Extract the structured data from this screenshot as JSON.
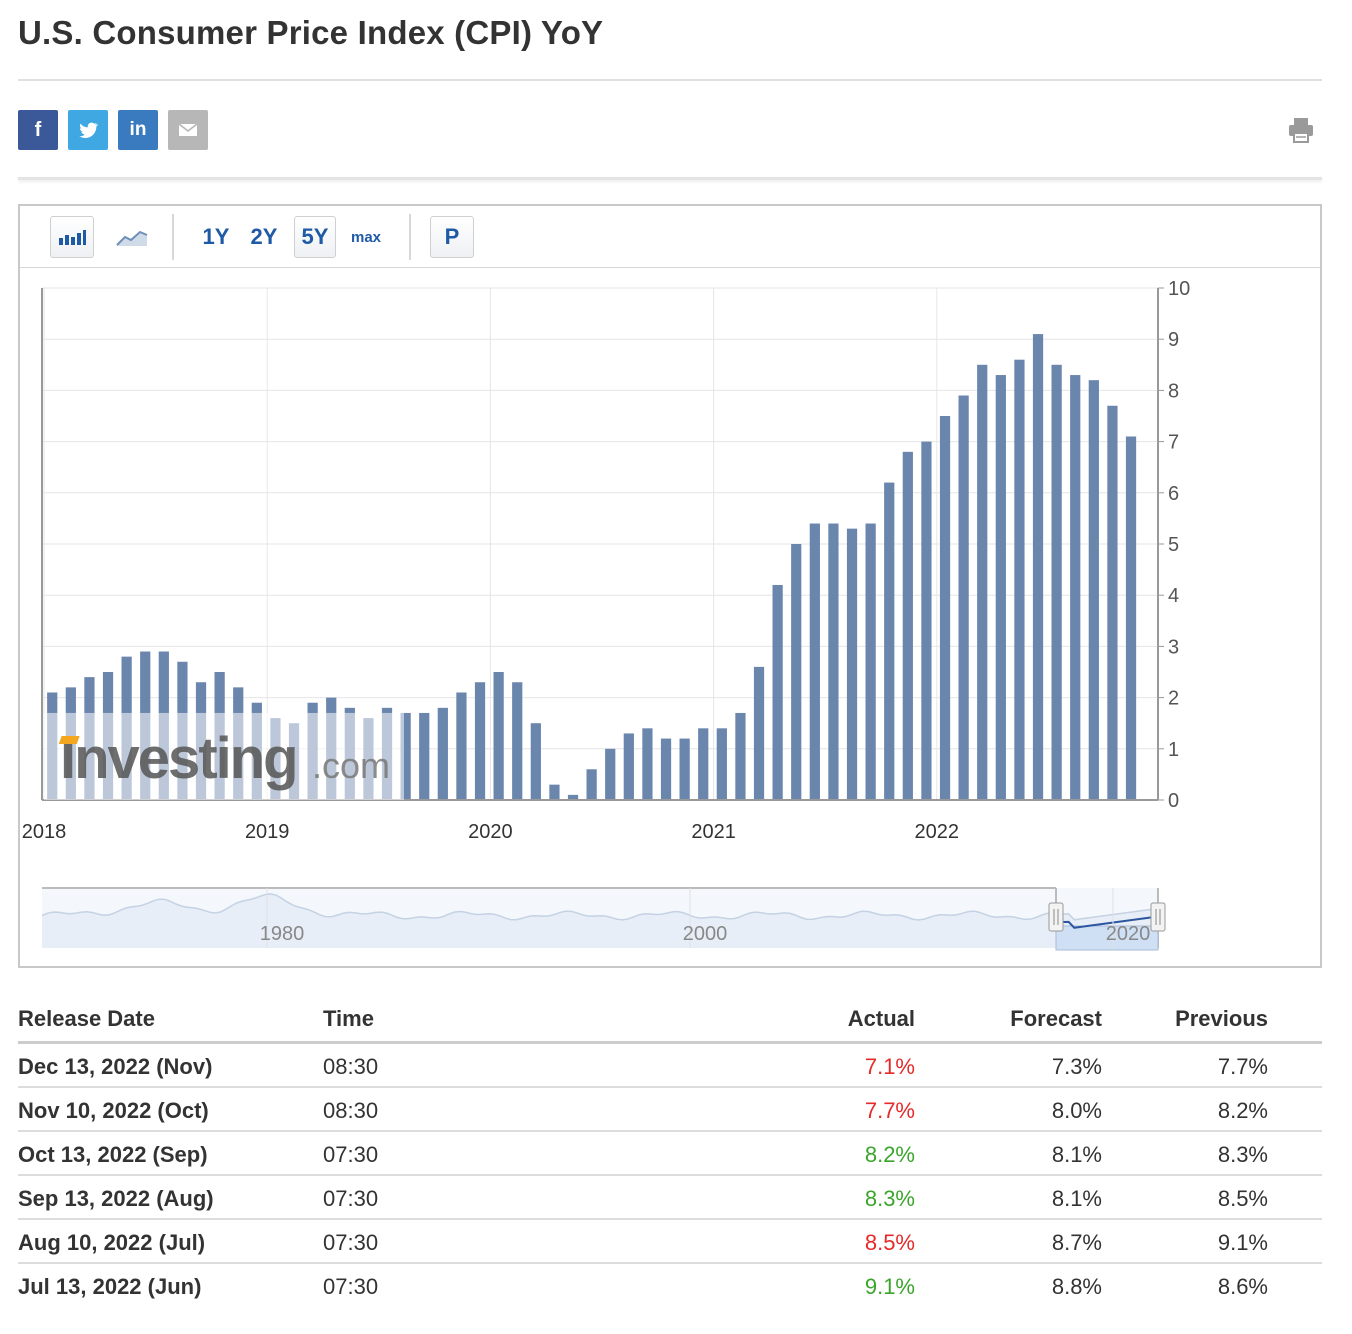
{
  "page": {
    "title": "U.S. Consumer Price Index (CPI) YoY"
  },
  "share": {
    "facebook_glyph": "f",
    "twitter_icon": "twitter-icon",
    "linkedin_glyph": "in",
    "email_icon": "email-icon",
    "print_icon": "print-icon"
  },
  "toolbar": {
    "bar_chart_icon": "bar-chart-icon",
    "line_chart_icon": "line-chart-icon",
    "range_1y": "1Y",
    "range_2y": "2Y",
    "range_5y": "5Y",
    "range_max": "max",
    "p_label": "P",
    "selected_range": "5Y"
  },
  "watermark": {
    "brand": "Investing",
    "suffix": ".com"
  },
  "chart_data": {
    "type": "bar",
    "title": "",
    "xlabel": "",
    "ylabel": "",
    "x_tick_labels": [
      "2018",
      "2019",
      "2020",
      "2021",
      "2022"
    ],
    "y_tick_labels": [
      "0",
      "1",
      "2",
      "3",
      "4",
      "5",
      "6",
      "7",
      "8",
      "9",
      "10"
    ],
    "ylim": [
      0,
      10
    ],
    "y_axis_side": "right",
    "grid": true,
    "bar_color": "#6b86ad",
    "series": [
      {
        "x": [
          "2018-01",
          "2018-02",
          "2018-03",
          "2018-04",
          "2018-05",
          "2018-06",
          "2018-07",
          "2018-08",
          "2018-09",
          "2018-10",
          "2018-11",
          "2018-12",
          "2019-01",
          "2019-02",
          "2019-03",
          "2019-04",
          "2019-05",
          "2019-06",
          "2019-07",
          "2019-08",
          "2019-09",
          "2019-10",
          "2019-11",
          "2019-12",
          "2020-01",
          "2020-02",
          "2020-03",
          "2020-04",
          "2020-05",
          "2020-06",
          "2020-07",
          "2020-08",
          "2020-09",
          "2020-10",
          "2020-11",
          "2020-12",
          "2021-01",
          "2021-02",
          "2021-03",
          "2021-04",
          "2021-05",
          "2021-06",
          "2021-07",
          "2021-08",
          "2021-09",
          "2021-10",
          "2021-11",
          "2021-12",
          "2022-01",
          "2022-02",
          "2022-03",
          "2022-04",
          "2022-05",
          "2022-06",
          "2022-07",
          "2022-08",
          "2022-09",
          "2022-10",
          "2022-11"
        ],
        "values": [
          2.1,
          2.2,
          2.4,
          2.5,
          2.8,
          2.9,
          2.9,
          2.7,
          2.3,
          2.5,
          2.2,
          1.9,
          1.6,
          1.5,
          1.9,
          2.0,
          1.8,
          1.6,
          1.8,
          1.7,
          1.7,
          1.8,
          2.1,
          2.3,
          2.5,
          2.3,
          1.5,
          0.3,
          0.1,
          0.6,
          1.0,
          1.3,
          1.4,
          1.2,
          1.2,
          1.4,
          1.4,
          1.7,
          2.6,
          4.2,
          5.0,
          5.4,
          5.4,
          5.3,
          5.4,
          6.2,
          6.8,
          7.0,
          7.5,
          7.9,
          8.5,
          8.3,
          8.6,
          9.1,
          8.5,
          8.3,
          8.2,
          7.7,
          7.1
        ]
      }
    ],
    "navigator": {
      "tick_labels": [
        "1980",
        "2000",
        "2020"
      ]
    }
  },
  "table": {
    "headers": {
      "date": "Release Date",
      "time": "Time",
      "actual": "Actual",
      "forecast": "Forecast",
      "previous": "Previous"
    },
    "rows": [
      {
        "date": "Dec 13, 2022 (Nov)",
        "time": "08:30",
        "actual": "7.1%",
        "actual_status": "neg",
        "forecast": "7.3%",
        "previous": "7.7%"
      },
      {
        "date": "Nov 10, 2022 (Oct)",
        "time": "08:30",
        "actual": "7.7%",
        "actual_status": "neg",
        "forecast": "8.0%",
        "previous": "8.2%"
      },
      {
        "date": "Oct 13, 2022 (Sep)",
        "time": "07:30",
        "actual": "8.2%",
        "actual_status": "pos",
        "forecast": "8.1%",
        "previous": "8.3%"
      },
      {
        "date": "Sep 13, 2022 (Aug)",
        "time": "07:30",
        "actual": "8.3%",
        "actual_status": "pos",
        "forecast": "8.1%",
        "previous": "8.5%"
      },
      {
        "date": "Aug 10, 2022 (Jul)",
        "time": "07:30",
        "actual": "8.5%",
        "actual_status": "neg",
        "forecast": "8.7%",
        "previous": "9.1%"
      },
      {
        "date": "Jul 13, 2022 (Jun)",
        "time": "07:30",
        "actual": "9.1%",
        "actual_status": "pos",
        "forecast": "8.8%",
        "previous": "8.6%"
      }
    ],
    "colors": {
      "neg": "#e62a2a",
      "pos": "#3aa52b"
    }
  }
}
